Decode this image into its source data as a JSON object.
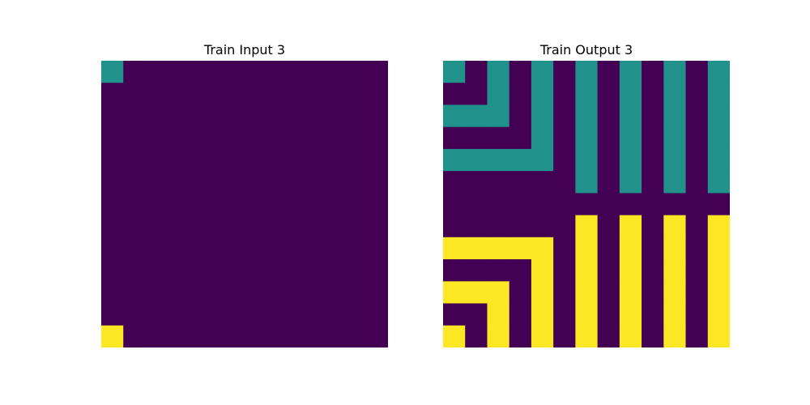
{
  "palette": {
    "0": "#440154",
    "1": "#21918c",
    "2": "#fde725"
  },
  "panels": [
    {
      "title": "Train Input 3",
      "grid": [
        [
          1,
          0,
          0,
          0,
          0,
          0,
          0,
          0,
          0,
          0,
          0,
          0,
          0
        ],
        [
          0,
          0,
          0,
          0,
          0,
          0,
          0,
          0,
          0,
          0,
          0,
          0,
          0
        ],
        [
          0,
          0,
          0,
          0,
          0,
          0,
          0,
          0,
          0,
          0,
          0,
          0,
          0
        ],
        [
          0,
          0,
          0,
          0,
          0,
          0,
          0,
          0,
          0,
          0,
          0,
          0,
          0
        ],
        [
          0,
          0,
          0,
          0,
          0,
          0,
          0,
          0,
          0,
          0,
          0,
          0,
          0
        ],
        [
          0,
          0,
          0,
          0,
          0,
          0,
          0,
          0,
          0,
          0,
          0,
          0,
          0
        ],
        [
          0,
          0,
          0,
          0,
          0,
          0,
          0,
          0,
          0,
          0,
          0,
          0,
          0
        ],
        [
          0,
          0,
          0,
          0,
          0,
          0,
          0,
          0,
          0,
          0,
          0,
          0,
          0
        ],
        [
          0,
          0,
          0,
          0,
          0,
          0,
          0,
          0,
          0,
          0,
          0,
          0,
          0
        ],
        [
          0,
          0,
          0,
          0,
          0,
          0,
          0,
          0,
          0,
          0,
          0,
          0,
          0
        ],
        [
          0,
          0,
          0,
          0,
          0,
          0,
          0,
          0,
          0,
          0,
          0,
          0,
          0
        ],
        [
          0,
          0,
          0,
          0,
          0,
          0,
          0,
          0,
          0,
          0,
          0,
          0,
          0
        ],
        [
          2,
          0,
          0,
          0,
          0,
          0,
          0,
          0,
          0,
          0,
          0,
          0,
          0
        ]
      ]
    },
    {
      "title": "Train Output 3",
      "grid": [
        [
          1,
          0,
          1,
          0,
          1,
          0,
          1,
          0,
          1,
          0,
          1,
          0,
          1
        ],
        [
          0,
          0,
          1,
          0,
          1,
          0,
          1,
          0,
          1,
          0,
          1,
          0,
          1
        ],
        [
          1,
          1,
          1,
          0,
          1,
          0,
          1,
          0,
          1,
          0,
          1,
          0,
          1
        ],
        [
          0,
          0,
          0,
          0,
          1,
          0,
          1,
          0,
          1,
          0,
          1,
          0,
          1
        ],
        [
          1,
          1,
          1,
          1,
          1,
          0,
          1,
          0,
          1,
          0,
          1,
          0,
          1
        ],
        [
          0,
          0,
          0,
          0,
          0,
          0,
          1,
          0,
          1,
          0,
          1,
          0,
          1
        ],
        [
          0,
          0,
          0,
          0,
          0,
          0,
          0,
          0,
          0,
          0,
          0,
          0,
          0
        ],
        [
          0,
          0,
          0,
          0,
          0,
          0,
          2,
          0,
          2,
          0,
          2,
          0,
          2
        ],
        [
          2,
          2,
          2,
          2,
          2,
          0,
          2,
          0,
          2,
          0,
          2,
          0,
          2
        ],
        [
          0,
          0,
          0,
          0,
          2,
          0,
          2,
          0,
          2,
          0,
          2,
          0,
          2
        ],
        [
          2,
          2,
          2,
          0,
          2,
          0,
          2,
          0,
          2,
          0,
          2,
          0,
          2
        ],
        [
          0,
          0,
          2,
          0,
          2,
          0,
          2,
          0,
          2,
          0,
          2,
          0,
          2
        ],
        [
          2,
          0,
          2,
          0,
          2,
          0,
          2,
          0,
          2,
          0,
          2,
          0,
          2
        ]
      ]
    }
  ]
}
